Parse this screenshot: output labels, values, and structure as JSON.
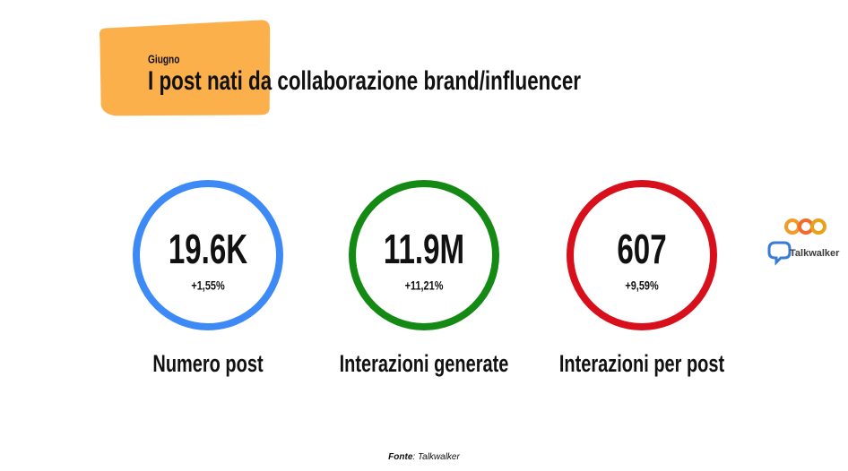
{
  "header": {
    "subtitle": "Giugno",
    "title": "I post nati da collaborazione brand/influencer"
  },
  "kpis": [
    {
      "value": "19.6K",
      "change": "+1,55%",
      "label": "Numero post",
      "color": "#3d8af7"
    },
    {
      "value": "11.9M",
      "change": "+11,21%",
      "label": "Interazioni generate",
      "color": "#148a14"
    },
    {
      "value": "607",
      "change": "+9,59%",
      "label": "Interazioni per post",
      "color": "#d8101c"
    }
  ],
  "logo": {
    "brand": "Talkwalker"
  },
  "source": {
    "label": "Fonte",
    "text": ": Talkwalker"
  }
}
